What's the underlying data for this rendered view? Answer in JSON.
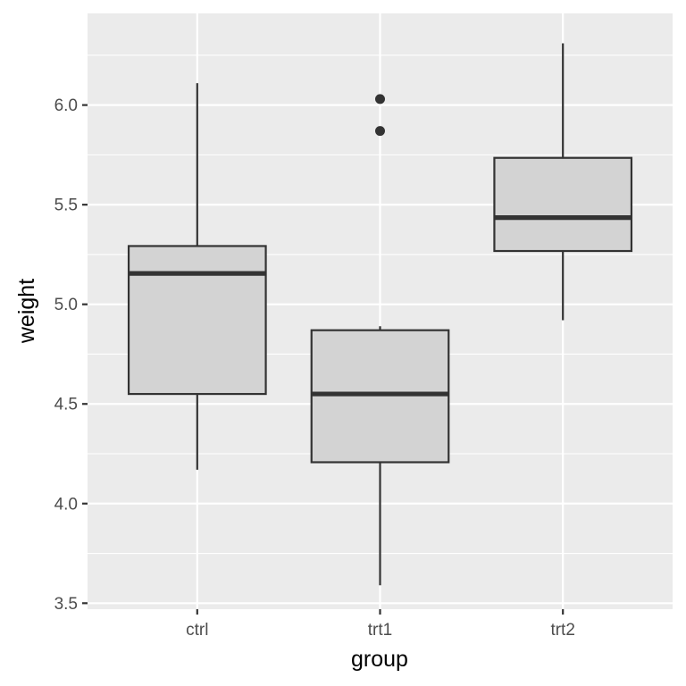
{
  "chart_data": {
    "type": "boxplot",
    "xlabel": "group",
    "ylabel": "weight",
    "ylim": [
      3.47,
      6.46
    ],
    "y_ticks": [
      3.5,
      4.0,
      4.5,
      5.0,
      5.5,
      6.0
    ],
    "y_tick_labels": [
      "3.5",
      "4.0",
      "4.5",
      "5.0",
      "5.5",
      "6.0"
    ],
    "grid": true,
    "categories": [
      "ctrl",
      "trt1",
      "trt2"
    ],
    "boxes": [
      {
        "category": "ctrl",
        "min": 4.17,
        "q1": 4.55,
        "median": 5.155,
        "q3": 5.2925,
        "max": 6.11,
        "outliers": []
      },
      {
        "category": "trt1",
        "min": 3.59,
        "q1": 4.2075,
        "median": 4.55,
        "q3": 4.87,
        "max": 4.89,
        "outliers": [
          5.87,
          6.03
        ]
      },
      {
        "category": "trt2",
        "min": 4.92,
        "q1": 5.2675,
        "median": 5.435,
        "q3": 5.735,
        "max": 6.31,
        "outliers": []
      }
    ],
    "colors": {
      "box_fill": "#d3d3d3",
      "box_stroke": "#333333",
      "panel": "#ebebeb",
      "grid": "#ffffff"
    }
  }
}
